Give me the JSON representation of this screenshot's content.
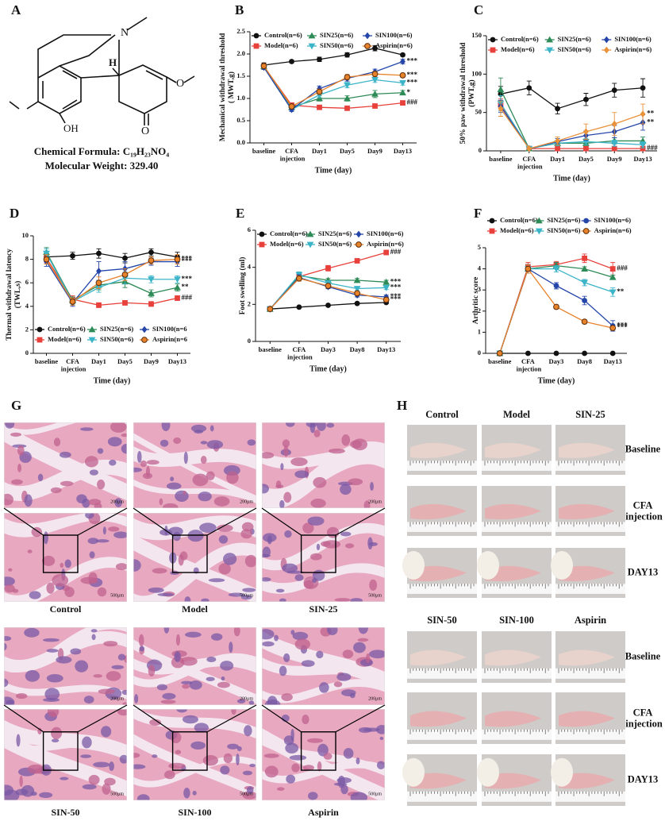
{
  "panel_labels": [
    "A",
    "B",
    "C",
    "D",
    "E",
    "F",
    "G",
    "H"
  ],
  "structure": {
    "atoms": [
      "N",
      "H",
      "OH",
      "O",
      "O"
    ],
    "formula": "Chemical Formula: C₁₉H₂₃NO₄",
    "weight": "Molecular Weight: 329.40"
  },
  "chart_data": [
    {
      "type": "line",
      "ylabel": [
        "Mechanical withdrawal threshold",
        "( MWT,g)"
      ],
      "xlabel": "Time (day)",
      "legend": "top",
      "categories": [
        "baseline",
        "CFA injection",
        "Day1",
        "Day5",
        "Day9",
        "Day13"
      ],
      "ylim": [
        0,
        2.5
      ],
      "yticks": [
        {
          "value": 0,
          "label": "0.0"
        },
        0.5,
        {
          "value": 1,
          "label": "1.0"
        },
        1.5,
        {
          "value": 2,
          "label": "2.0"
        },
        2.5
      ],
      "series": [
        {
          "name": "Control(n=6)",
          "color": "#111111",
          "marker": "circle",
          "values": [
            1.75,
            1.83,
            1.88,
            1.98,
            2.13,
            1.98
          ],
          "errors": [
            0.05,
            0.03,
            0.05,
            0.05,
            0.06,
            0.03
          ]
        },
        {
          "name": "Model(n=6)",
          "color": "#e8413c",
          "marker": "square",
          "values": [
            1.72,
            0.85,
            0.8,
            0.78,
            0.83,
            0.9
          ],
          "errors": [
            0.05,
            0.04,
            0.03,
            0.03,
            0.03,
            0.03
          ],
          "annotation": "###"
        },
        {
          "name": "SIN25(n=6)",
          "color": "#2e8b57",
          "marker": "triangle-up",
          "values": [
            1.72,
            0.8,
            1.0,
            1.0,
            1.1,
            1.13
          ],
          "errors": [
            0.05,
            0.04,
            0.06,
            0.06,
            0.08,
            0.05
          ],
          "annotation": "*"
        },
        {
          "name": "SIN50(n=6)",
          "color": "#3cb4c8",
          "marker": "triangle-down",
          "values": [
            1.7,
            0.75,
            1.08,
            1.3,
            1.42,
            1.35
          ],
          "errors": [
            0.05,
            0.04,
            0.06,
            0.06,
            0.06,
            0.05
          ],
          "annotation": "***"
        },
        {
          "name": "SIN100(n=6)",
          "color": "#2546a8",
          "marker": "diamond",
          "values": [
            1.7,
            0.75,
            1.22,
            1.45,
            1.6,
            1.83
          ],
          "errors": [
            0.05,
            0.04,
            0.06,
            0.06,
            0.06,
            0.05
          ],
          "annotation": "***"
        },
        {
          "name": "Aspirin(n=6)",
          "color": "#e8822a",
          "edgecolor": "#5a2d0c",
          "marker": "circle",
          "values": [
            1.73,
            0.82,
            1.15,
            1.48,
            1.55,
            1.52
          ],
          "errors": [
            0.05,
            0.04,
            0.06,
            0.06,
            0.06,
            0.05
          ],
          "annotation": "***"
        }
      ]
    },
    {
      "type": "line",
      "ylabel": [
        "50% paw withdrawal threshold",
        "(PWT,g)"
      ],
      "xlabel": "Time (day)",
      "legend": "top",
      "categories": [
        "baseline",
        "CFA injection",
        "Day1",
        "Day5",
        "Day9",
        "Day13"
      ],
      "ylim": [
        0,
        150
      ],
      "yticks": [
        0,
        50,
        100,
        150
      ],
      "series": [
        {
          "name": "Control(n=6)",
          "color": "#111111",
          "marker": "circle",
          "values": [
            74,
            82,
            55,
            67,
            79,
            82
          ],
          "errors": [
            10,
            9,
            7,
            8,
            9,
            12
          ]
        },
        {
          "name": "Model(n=6)",
          "color": "#e8413c",
          "marker": "square",
          "values": [
            60,
            3,
            3,
            3,
            3,
            3
          ],
          "errors": [
            8,
            1,
            1,
            1,
            1,
            1
          ],
          "annotation": "###"
        },
        {
          "name": "SIN25(n=6)",
          "color": "#2e8b57",
          "marker": "triangle-up",
          "values": [
            80,
            3,
            10,
            10,
            13,
            13
          ],
          "errors": [
            15,
            1,
            3,
            3,
            4,
            5
          ]
        },
        {
          "name": "SIN50(n=6)",
          "color": "#3cb4c8",
          "marker": "triangle-down",
          "values": [
            62,
            3,
            10,
            12,
            10,
            8
          ],
          "errors": [
            10,
            1,
            3,
            4,
            4,
            4
          ]
        },
        {
          "name": "SIN100(n=6)",
          "color": "#2546a8",
          "marker": "diamond",
          "values": [
            58,
            3,
            12,
            20,
            25,
            37
          ],
          "errors": [
            8,
            1,
            4,
            6,
            8,
            10
          ],
          "annotation": "**"
        },
        {
          "name": "Aspirin(n=6)",
          "color": "#e8923a",
          "marker": "diamond",
          "values": [
            55,
            3,
            13,
            25,
            35,
            48
          ],
          "errors": [
            10,
            1,
            5,
            10,
            15,
            13
          ],
          "annotation": "**"
        }
      ]
    },
    {
      "type": "line",
      "ylabel": [
        "Thermal withdrawal latency",
        "(TWL,s)"
      ],
      "xlabel": "Time (day)",
      "legend": "bottom",
      "categories": [
        "baseline",
        "CFA injection",
        "Day1",
        "Day5",
        "Day9",
        "Day13"
      ],
      "ylim": [
        0,
        10
      ],
      "yticks": [
        0,
        2,
        4,
        6,
        8,
        10
      ],
      "series": [
        {
          "name": "Control(n=6)",
          "color": "#111111",
          "marker": "circle",
          "values": [
            8.2,
            8.3,
            8.5,
            8.1,
            8.6,
            8.2
          ],
          "errors": [
            0.3,
            0.3,
            0.4,
            0.4,
            0.3,
            0.4
          ]
        },
        {
          "name": "Model(n=6)",
          "color": "#e8413c",
          "marker": "square",
          "values": [
            8.1,
            4.6,
            4.1,
            4.3,
            4.2,
            4.7
          ],
          "errors": [
            0.4,
            0.3,
            0.2,
            0.2,
            0.2,
            0.2
          ],
          "annotation": "###"
        },
        {
          "name": "SIN25(n=6)",
          "color": "#2e8b57",
          "marker": "triangle-up",
          "values": [
            8.6,
            4.5,
            5.8,
            6.1,
            5.1,
            5.6
          ],
          "errors": [
            0.4,
            0.3,
            0.4,
            0.5,
            0.3,
            0.3
          ],
          "annotation": "**"
        },
        {
          "name": "SIN50(n=6)",
          "color": "#3cb4c8",
          "marker": "triangle-down",
          "values": [
            8.5,
            4.4,
            5.6,
            6.4,
            6.3,
            6.3
          ],
          "errors": [
            0.4,
            0.3,
            0.4,
            0.5,
            0.3,
            0.3
          ],
          "annotation": "***"
        },
        {
          "name": "SIN100(n=6",
          "color": "#2546a8",
          "marker": "diamond",
          "values": [
            7.8,
            4.3,
            7.0,
            7.2,
            7.8,
            7.8
          ],
          "errors": [
            0.4,
            0.3,
            0.8,
            0.6,
            0.3,
            0.4
          ],
          "annotation": "***"
        },
        {
          "name": "Aspirin(n=6",
          "color": "#e8822a",
          "edgecolor": "#5a2d0c",
          "marker": "circle",
          "values": [
            8.0,
            4.4,
            6.0,
            6.7,
            7.9,
            8.0
          ],
          "errors": [
            0.4,
            0.3,
            0.5,
            0.5,
            0.3,
            0.4
          ],
          "annotation": "***"
        }
      ]
    },
    {
      "type": "line",
      "ylabel": [
        "Foot swelling (ml)"
      ],
      "xlabel": "Time (day)",
      "legend": "top",
      "categories": [
        "baseline",
        "CFA injection",
        "Day3",
        "Day8",
        "Day13"
      ],
      "ylim": [
        0,
        6
      ],
      "yticks": [
        0,
        2,
        4,
        6
      ],
      "series": [
        {
          "name": "Control(n=6)",
          "color": "#111111",
          "marker": "circle",
          "values": [
            1.75,
            1.85,
            1.95,
            2.05,
            2.1
          ],
          "errors": [
            0.05,
            0.05,
            0.05,
            0.05,
            0.05
          ]
        },
        {
          "name": "Model(n=6)",
          "color": "#e8413c",
          "marker": "square",
          "values": [
            1.75,
            3.5,
            3.95,
            4.35,
            4.8
          ],
          "errors": [
            0.05,
            0.15,
            0.15,
            0.1,
            0.12
          ],
          "annotation": "###"
        },
        {
          "name": "SIN25(n=6)",
          "color": "#2e8b57",
          "marker": "triangle-up",
          "values": [
            1.75,
            3.55,
            3.3,
            3.3,
            3.2
          ],
          "errors": [
            0.05,
            0.15,
            0.1,
            0.1,
            0.1
          ],
          "annotation": "***"
        },
        {
          "name": "SIN50(n=6)",
          "color": "#3cb4c8",
          "marker": "triangle-down",
          "values": [
            1.75,
            3.6,
            3.15,
            2.85,
            2.9
          ],
          "errors": [
            0.05,
            0.15,
            0.1,
            0.1,
            0.1
          ],
          "annotation": "***"
        },
        {
          "name": "SIN100(n=6)",
          "color": "#2546a8",
          "marker": "diamond",
          "values": [
            1.75,
            3.45,
            2.95,
            2.5,
            2.4
          ],
          "errors": [
            0.05,
            0.15,
            0.1,
            0.1,
            0.1
          ],
          "annotation": "***"
        },
        {
          "name": "Aspirin(n=6)",
          "color": "#e8822a",
          "edgecolor": "#5a2d0c",
          "marker": "circle",
          "values": [
            1.75,
            3.4,
            3.0,
            2.6,
            2.25
          ],
          "errors": [
            0.05,
            0.15,
            0.1,
            0.1,
            0.1
          ],
          "annotation": "***"
        }
      ]
    },
    {
      "type": "line",
      "ylabel": [
        "Arthritic score"
      ],
      "xlabel": "Time (day)",
      "legend": "above",
      "categories": [
        "baseline",
        "CFA injection",
        "Day3",
        "Day8",
        "Day13"
      ],
      "ylim": [
        0,
        5
      ],
      "yticks": [
        0,
        1,
        2,
        3,
        4,
        5
      ],
      "series": [
        {
          "name": "Control(n=6)",
          "color": "#111111",
          "marker": "circle",
          "values": [
            0,
            0,
            0,
            0,
            0
          ],
          "errors": [
            0,
            0,
            0,
            0,
            0
          ]
        },
        {
          "name": "Model(n=6)",
          "color": "#e8413c",
          "marker": "square",
          "values": [
            0,
            4.1,
            4.2,
            4.5,
            4.0
          ],
          "errors": [
            0,
            0.2,
            0.15,
            0.2,
            0.3
          ],
          "annotation": "###"
        },
        {
          "name": "SIN25(n=6)",
          "color": "#2e8b57",
          "marker": "triangle-up",
          "values": [
            0,
            4.0,
            4.15,
            4.0,
            3.6
          ],
          "errors": [
            0,
            0.2,
            0.15,
            0.1,
            0.1
          ]
        },
        {
          "name": "SIN50(n=6)",
          "color": "#3cb4c8",
          "marker": "triangle-down",
          "values": [
            0,
            4.0,
            4.0,
            3.35,
            2.9
          ],
          "errors": [
            0,
            0.2,
            0.15,
            0.15,
            0.2
          ],
          "annotation": "**"
        },
        {
          "name": "SIN100(n=6)",
          "color": "#2546a8",
          "marker": "circle",
          "values": [
            0,
            4.0,
            3.2,
            2.5,
            1.3
          ],
          "errors": [
            0,
            0.2,
            0.15,
            0.2,
            0.25
          ],
          "annotation": "***"
        },
        {
          "name": "Aspirin(n=6)",
          "color": "#e8822a",
          "edgecolor": "#5a2d0c",
          "marker": "circle",
          "values": [
            0,
            4.0,
            2.2,
            1.5,
            1.2
          ],
          "errors": [
            0,
            0.2,
            0.1,
            0.1,
            0.1
          ],
          "annotation": "***"
        }
      ]
    }
  ],
  "histology": {
    "groups": [
      "Control",
      "Model",
      "SIN-25",
      "SIN-50",
      "SIN-100",
      "Aspirin"
    ],
    "zoom_scale": "200μm",
    "overview_scale": "500μm"
  },
  "photos": {
    "groups": [
      "Control",
      "Model",
      "SIN-25",
      "SIN-50",
      "SIN-100",
      "Aspirin"
    ],
    "rows": [
      "Baseline",
      "CFA injection",
      "DAY13"
    ]
  }
}
